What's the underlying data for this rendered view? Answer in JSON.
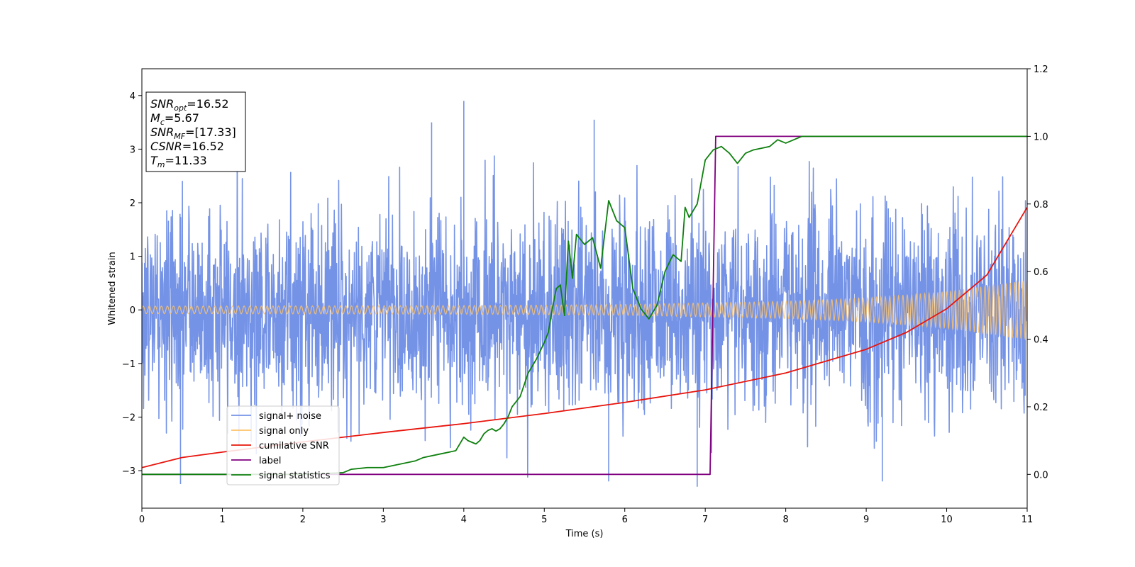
{
  "chart_data": {
    "type": "line",
    "xlabel": "Time (s)",
    "ylabel": "Whitened strain",
    "xlim": [
      0,
      11
    ],
    "ylim_left": [
      -3.7,
      4.5
    ],
    "ylim_right": [
      -0.1,
      1.2
    ],
    "x_ticks": [
      0,
      1,
      2,
      3,
      4,
      5,
      6,
      7,
      8,
      9,
      10,
      11
    ],
    "y_ticks_left": [
      -3,
      -2,
      -1,
      0,
      1,
      2,
      3,
      4
    ],
    "y_tick_labels_left": [
      "−3",
      "−2",
      "−1",
      "0",
      "1",
      "2",
      "3",
      "4"
    ],
    "y_ticks_right": [
      0.0,
      0.2,
      0.4,
      0.6,
      0.8,
      1.0,
      1.2
    ],
    "y_tick_labels_right": [
      "0.0",
      "0.2",
      "0.4",
      "0.6",
      "0.8",
      "1.0",
      "1.2"
    ],
    "grid": false,
    "legend_position": "lower-left",
    "info_box": {
      "lines": [
        {
          "main": "SNR",
          "sub": "opt",
          "value": "=16.52"
        },
        {
          "main": "M",
          "sub": "c",
          "value": "=5.67"
        },
        {
          "main": "SNR",
          "sub": "MF",
          "value": "=[17.33]"
        },
        {
          "main": "CSNR",
          "sub": "",
          "value": "=16.52"
        },
        {
          "main": "T",
          "sub": "m",
          "value": "=11.33"
        }
      ]
    },
    "series": [
      {
        "name": "signal+ noise",
        "axis": "left",
        "color": "#7593e6",
        "kind": "noise",
        "sigma": 0.95,
        "envelope_peak": [
          [
            0,
            2.9
          ],
          [
            0.5,
            3.2
          ],
          [
            2.2,
            3.3
          ],
          [
            3.3,
            3.5
          ],
          [
            4.0,
            3.9
          ],
          [
            5.6,
            3.55
          ],
          [
            7.0,
            3.3
          ],
          [
            7.9,
            3.25
          ],
          [
            9.2,
            3.2
          ],
          [
            11,
            3.0
          ]
        ],
        "notable_spikes": [
          [
            0.48,
            -3.25
          ],
          [
            3.6,
            3.5
          ],
          [
            4.0,
            3.9
          ],
          [
            5.62,
            3.55
          ],
          [
            5.8,
            -3.2
          ],
          [
            6.9,
            -3.3
          ],
          [
            9.2,
            -3.2
          ]
        ]
      },
      {
        "name": "signal only",
        "axis": "left",
        "color": "#fdc26a",
        "kind": "chirp",
        "amplitude": [
          [
            0,
            0.07
          ],
          [
            4,
            0.08
          ],
          [
            6,
            0.1
          ],
          [
            8,
            0.16
          ],
          [
            9,
            0.22
          ],
          [
            10,
            0.34
          ],
          [
            11,
            0.55
          ]
        ]
      },
      {
        "name": "cumilative SNR",
        "axis": "right",
        "color": "#e8140c",
        "x": [
          0,
          0.5,
          1,
          2,
          3,
          4,
          5,
          6,
          7,
          8,
          9,
          9.5,
          10,
          10.5,
          11
        ],
        "y": [
          0.02,
          0.05,
          0.066,
          0.096,
          0.124,
          0.15,
          0.18,
          0.213,
          0.25,
          0.3,
          0.37,
          0.42,
          0.49,
          0.59,
          0.79
        ]
      },
      {
        "name": "label",
        "axis": "right",
        "color": "#80007f",
        "x": [
          0,
          7.06,
          7.13,
          11
        ],
        "y": [
          0.0,
          0.0,
          1.0,
          1.0
        ]
      },
      {
        "name": "signal statistics",
        "axis": "right",
        "color": "#0e800e",
        "x": [
          0,
          1,
          2,
          2.5,
          2.6,
          2.8,
          3.0,
          3.2,
          3.4,
          3.5,
          3.7,
          3.9,
          4.0,
          4.05,
          4.1,
          4.15,
          4.2,
          4.25,
          4.3,
          4.35,
          4.4,
          4.45,
          4.5,
          4.55,
          4.6,
          4.7,
          4.8,
          4.9,
          5.0,
          5.05,
          5.1,
          5.15,
          5.2,
          5.25,
          5.3,
          5.35,
          5.4,
          5.5,
          5.6,
          5.7,
          5.8,
          5.9,
          6.0,
          6.1,
          6.2,
          6.3,
          6.4,
          6.5,
          6.6,
          6.7,
          6.75,
          6.8,
          6.9,
          7.0,
          7.1,
          7.2,
          7.3,
          7.4,
          7.5,
          7.6,
          7.7,
          7.8,
          7.9,
          8.0,
          8.1,
          8.2,
          8.4,
          8.6,
          9.0,
          9.5,
          10.0,
          10.5,
          11.0
        ],
        "y": [
          0.0,
          0.0,
          0.0,
          0.005,
          0.015,
          0.02,
          0.02,
          0.03,
          0.04,
          0.05,
          0.06,
          0.07,
          0.11,
          0.1,
          0.095,
          0.09,
          0.1,
          0.12,
          0.13,
          0.135,
          0.128,
          0.135,
          0.15,
          0.17,
          0.2,
          0.23,
          0.3,
          0.34,
          0.39,
          0.42,
          0.49,
          0.55,
          0.56,
          0.47,
          0.69,
          0.58,
          0.71,
          0.68,
          0.7,
          0.61,
          0.81,
          0.75,
          0.73,
          0.55,
          0.49,
          0.46,
          0.5,
          0.6,
          0.65,
          0.63,
          0.79,
          0.76,
          0.8,
          0.93,
          0.96,
          0.97,
          0.95,
          0.92,
          0.95,
          0.96,
          0.965,
          0.97,
          0.99,
          0.98,
          0.99,
          1.0,
          1.0,
          1.0,
          1.0,
          1.0,
          1.0,
          1.0,
          1.0
        ]
      }
    ]
  }
}
